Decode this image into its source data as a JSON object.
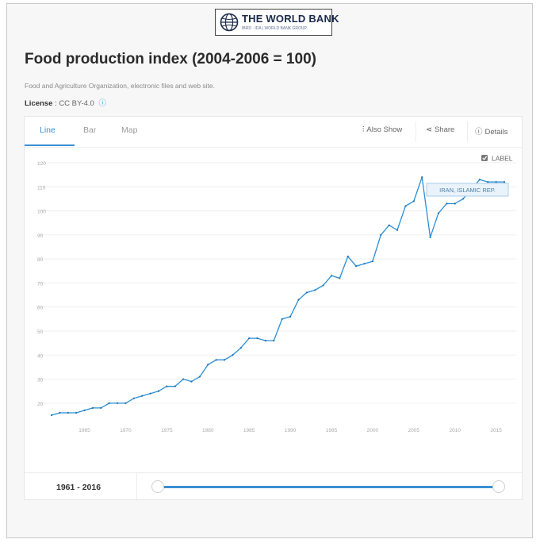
{
  "logo": {
    "name": "THE WORLD BANK",
    "sub": "IBRD · IDA | WORLD BANK GROUP"
  },
  "page_title": "Food production index (2004-2006 = 100)",
  "source": "Food and Agriculture Organization, electronic files and web site.",
  "license": {
    "label": "License",
    "value": "CC BY-4.0",
    "info_icon": "info-icon"
  },
  "tabs": [
    "Line",
    "Bar",
    "Map"
  ],
  "toolbar": {
    "also_show": "Also Show",
    "share": "Share",
    "details": "Details"
  },
  "label_toggle": "LABEL",
  "range_label": "1961 - 2016",
  "colors": {
    "accent": "#3a8fd3",
    "line": "#2a8fd6",
    "grid": "#efefef"
  },
  "chart_data": {
    "type": "line",
    "x_ticks": [
      1965,
      1970,
      1975,
      1980,
      1985,
      1990,
      1995,
      2000,
      2005,
      2010,
      2015
    ],
    "y_ticks": [
      20,
      30,
      40,
      50,
      60,
      70,
      80,
      90,
      100,
      110,
      120
    ],
    "xlim": [
      1961,
      2016
    ],
    "ylim": [
      15,
      120
    ],
    "grid": true,
    "series": [
      {
        "name": "IRAN, ISLAMIC REP.",
        "x": [
          1961,
          1962,
          1963,
          1964,
          1965,
          1966,
          1967,
          1968,
          1969,
          1970,
          1971,
          1972,
          1973,
          1974,
          1975,
          1976,
          1977,
          1978,
          1979,
          1980,
          1981,
          1982,
          1983,
          1984,
          1985,
          1986,
          1987,
          1988,
          1989,
          1990,
          1991,
          1992,
          1993,
          1994,
          1995,
          1996,
          1997,
          1998,
          1999,
          2000,
          2001,
          2002,
          2003,
          2004,
          2005,
          2006,
          2007,
          2008,
          2009,
          2010,
          2011,
          2012,
          2013,
          2014,
          2015,
          2016
        ],
        "y": [
          15,
          16,
          16,
          16,
          17,
          18,
          18,
          20,
          20,
          20,
          22,
          23,
          24,
          25,
          27,
          27,
          30,
          29,
          31,
          36,
          38,
          38,
          40,
          43,
          47,
          47,
          46,
          46,
          55,
          56,
          63,
          66,
          67,
          69,
          73,
          72,
          81,
          77,
          78,
          79,
          90,
          94,
          92,
          102,
          104,
          114,
          89,
          99,
          103,
          103,
          105,
          109,
          113,
          112,
          112,
          112
        ]
      }
    ],
    "annotations": [
      "IRAN, ISLAMIC REP."
    ]
  }
}
